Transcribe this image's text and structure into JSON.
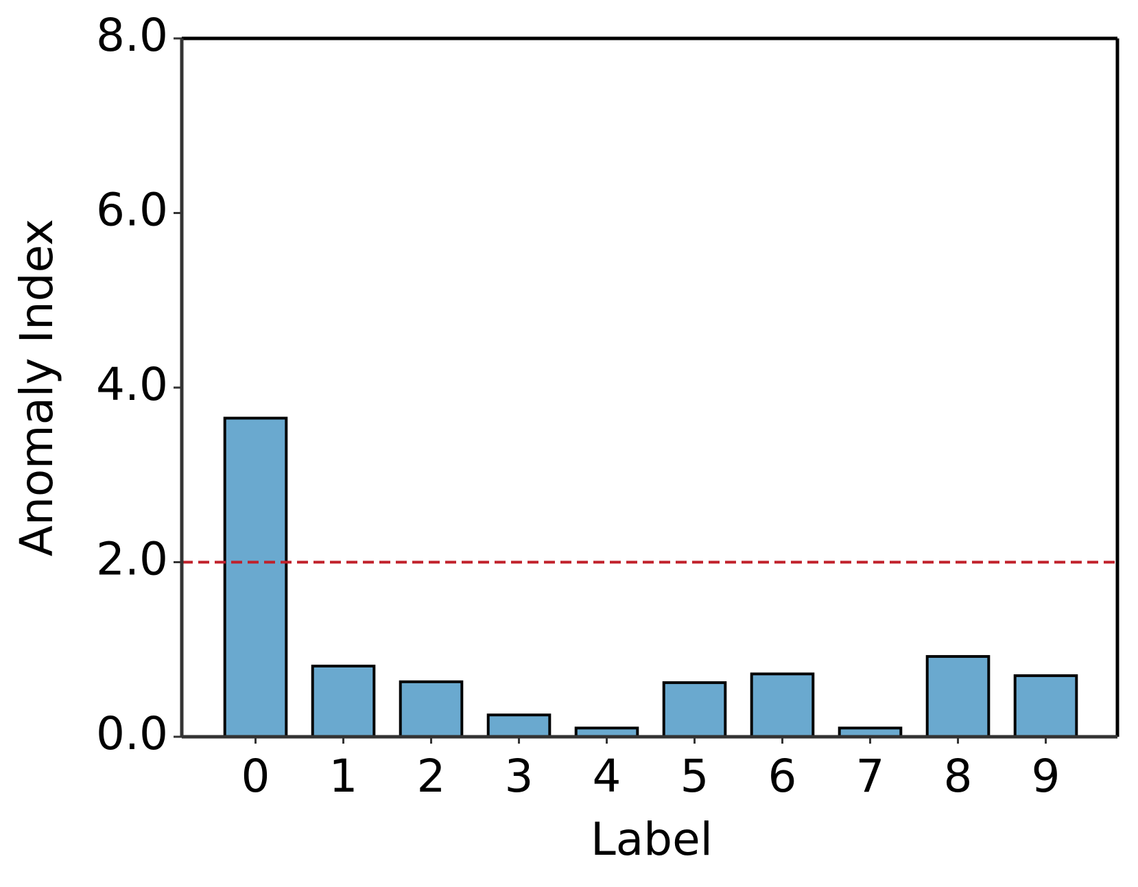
{
  "chart_data": {
    "type": "bar",
    "x_label": "Label",
    "y_label": "Anomaly Index",
    "categories": [
      "0",
      "1",
      "2",
      "3",
      "4",
      "5",
      "6",
      "7",
      "8",
      "9"
    ],
    "values": [
      3.65,
      0.81,
      0.63,
      0.25,
      0.1,
      0.62,
      0.72,
      0.1,
      0.92,
      0.7
    ],
    "color": "#6aa9cf",
    "edge_color": "#000000",
    "threshold": 2.0,
    "threshold_color": "#c0202a",
    "ylim": [
      0,
      8
    ],
    "yticks": [
      {
        "value": 0,
        "label": "0.0"
      },
      {
        "value": 2,
        "label": "2.0"
      },
      {
        "value": 4,
        "label": "4.0"
      },
      {
        "value": 6,
        "label": "6.0"
      },
      {
        "value": 8,
        "label": "8.0"
      }
    ],
    "grid": false
  }
}
